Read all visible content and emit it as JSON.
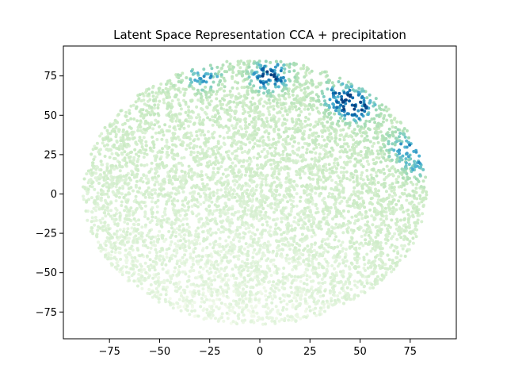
{
  "chart_data": {
    "type": "scatter",
    "title": "Latent Space Representation CCA + precipitation",
    "xlabel": "",
    "ylabel": "",
    "xlim": [
      -98,
      98
    ],
    "ylim": [
      -92,
      94
    ],
    "xticks": [
      -75,
      -50,
      -25,
      0,
      25,
      50,
      75
    ],
    "yticks": [
      -75,
      -50,
      -25,
      0,
      25,
      50,
      75
    ],
    "grid": false,
    "colormap": "GnBu",
    "colormap_stops": [
      "#f7fcf0",
      "#e0f3db",
      "#ccebc5",
      "#a8ddb5",
      "#7bccc4",
      "#4eb3d3",
      "#2b8cbe",
      "#0868ac",
      "#084081"
    ],
    "point_cloud": {
      "shape": "ellipse",
      "center": [
        0,
        0
      ],
      "x_range": [
        -90,
        85
      ],
      "y_range": [
        -85,
        87
      ],
      "approx_points": 6000
    },
    "high_value_clusters": [
      {
        "x": 5,
        "y": 75,
        "value": 0.95
      },
      {
        "x": 48,
        "y": 55,
        "value": 0.9
      },
      {
        "x": 40,
        "y": 62,
        "value": 0.7
      },
      {
        "x": -28,
        "y": 75,
        "value": 0.55
      },
      {
        "x": 72,
        "y": 30,
        "value": 0.5
      },
      {
        "x": 80,
        "y": 18,
        "value": 0.4
      }
    ]
  }
}
